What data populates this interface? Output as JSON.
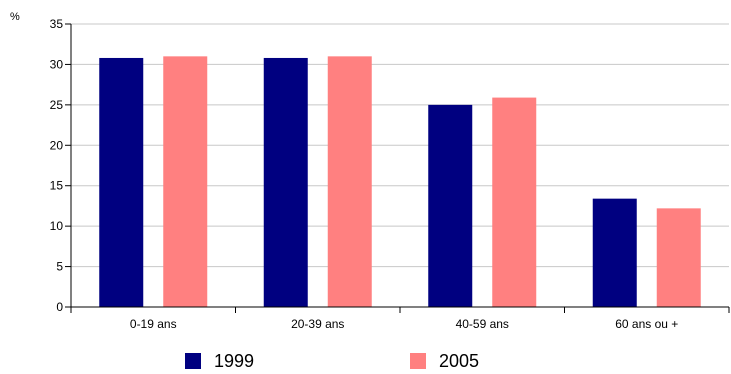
{
  "chart_data": {
    "type": "bar",
    "ylabel": "%",
    "ylim": [
      0,
      35
    ],
    "yticks": [
      0,
      5,
      10,
      15,
      20,
      25,
      30,
      35
    ],
    "grid": true,
    "legend_position": "bottom",
    "categories": [
      "0-19 ans",
      "20-39 ans",
      "40-59 ans",
      "60 ans ou +"
    ],
    "series": [
      {
        "name": "1999",
        "color": "#000080",
        "values": [
          30.8,
          30.8,
          25.0,
          13.4
        ]
      },
      {
        "name": "2005",
        "color": "#ff8080",
        "values": [
          31.0,
          31.0,
          25.9,
          12.2
        ]
      }
    ]
  }
}
